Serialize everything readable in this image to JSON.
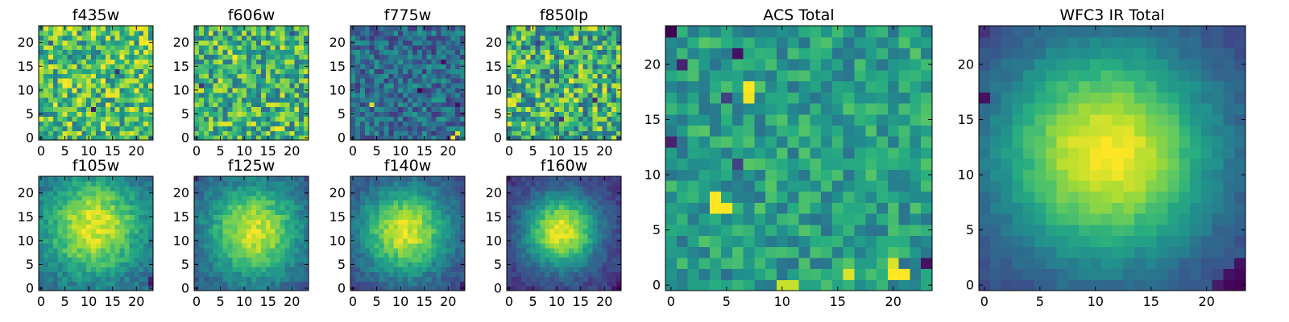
{
  "chart_data": {
    "type": "heatmap",
    "colormap": "viridis",
    "grid": false,
    "panels": [
      {
        "id": "f435w",
        "title": "f435w",
        "size": 24,
        "xticks": [
          0,
          5,
          10,
          15,
          20
        ],
        "yticks": [
          0,
          5,
          10,
          15,
          20
        ],
        "texture": "noise",
        "mean": 0.7,
        "amp": 0.3,
        "seed": 11,
        "dark_spots": [
          [
            11,
            6,
            0.08
          ],
          [
            16,
            14,
            0.15
          ],
          [
            2,
            20,
            0.3
          ]
        ],
        "bright_spots": [
          [
            13,
            12,
            1.0
          ]
        ]
      },
      {
        "id": "f606w",
        "title": "f606w",
        "size": 24,
        "xticks": [
          0,
          5,
          10,
          15,
          20
        ],
        "yticks": [
          0,
          5,
          10,
          15,
          20
        ],
        "texture": "noise",
        "mean": 0.66,
        "amp": 0.3,
        "seed": 23,
        "dark_spots": [
          [
            1,
            11,
            0.15
          ],
          [
            20,
            22,
            0.25
          ]
        ],
        "bright_spots": [
          [
            8,
            17,
            1.0
          ],
          [
            17,
            2,
            1.0
          ],
          [
            6,
            3,
            0.95
          ]
        ]
      },
      {
        "id": "f775w",
        "title": "f775w",
        "size": 24,
        "xticks": [
          0,
          5,
          10,
          15,
          20
        ],
        "yticks": [
          0,
          5,
          10,
          15,
          20
        ],
        "texture": "noise",
        "mean": 0.36,
        "amp": 0.2,
        "seed": 37,
        "dark_spots": [
          [
            14,
            10,
            0.0
          ],
          [
            19,
            16,
            0.05
          ],
          [
            22,
            7,
            0.05
          ]
        ],
        "bright_spots": [
          [
            4,
            7,
            0.95
          ],
          [
            21,
            0,
            1.0
          ],
          [
            22,
            1,
            0.95
          ]
        ]
      },
      {
        "id": "f850lp",
        "title": "f850lp",
        "size": 24,
        "xticks": [
          0,
          5,
          10,
          15,
          20
        ],
        "yticks": [
          0,
          5,
          10,
          15,
          20
        ],
        "texture": "noise",
        "mean": 0.64,
        "amp": 0.34,
        "seed": 53,
        "dark_spots": [
          [
            6,
            20,
            0.2
          ],
          [
            18,
            8,
            0.1
          ],
          [
            11,
            4,
            0.15
          ]
        ],
        "bright_spots": [
          [
            13,
            12,
            1.0
          ],
          [
            4,
            6,
            0.95
          ]
        ]
      },
      {
        "id": "f105w",
        "title": "f105w",
        "size": 24,
        "xticks": [
          0,
          5,
          10,
          15,
          20
        ],
        "yticks": [
          0,
          5,
          10,
          15,
          20
        ],
        "texture": "blob",
        "center": [
          11,
          13
        ],
        "sigma": 7.5,
        "base": 0.3,
        "peak": 0.96,
        "noise": 0.1,
        "seed": 71,
        "dark_spots": [
          [
            23,
            1,
            0.05
          ],
          [
            23,
            2,
            0.1
          ]
        ],
        "bright_spots": []
      },
      {
        "id": "f125w",
        "title": "f125w",
        "size": 24,
        "xticks": [
          0,
          5,
          10,
          15,
          20
        ],
        "yticks": [
          0,
          5,
          10,
          15,
          20
        ],
        "texture": "blob",
        "center": [
          12,
          12
        ],
        "sigma": 7.0,
        "base": 0.26,
        "peak": 0.94,
        "noise": 0.09,
        "seed": 83,
        "dark_spots": [
          [
            0,
            23,
            0.15
          ],
          [
            23,
            23,
            0.2
          ]
        ],
        "bright_spots": []
      },
      {
        "id": "f140w",
        "title": "f140w",
        "size": 24,
        "xticks": [
          0,
          5,
          10,
          15,
          20
        ],
        "yticks": [
          0,
          5,
          10,
          15,
          20
        ],
        "texture": "blob",
        "center": [
          11,
          12
        ],
        "sigma": 6.5,
        "base": 0.22,
        "peak": 0.95,
        "noise": 0.08,
        "seed": 97,
        "dark_spots": [
          [
            23,
            0,
            0.05
          ],
          [
            23,
            1,
            0.08
          ],
          [
            0,
            0,
            0.15
          ]
        ],
        "bright_spots": []
      },
      {
        "id": "f160w",
        "title": "f160w",
        "size": 24,
        "xticks": [
          0,
          5,
          10,
          15,
          20
        ],
        "yticks": [
          0,
          5,
          10,
          15,
          20
        ],
        "texture": "blob",
        "center": [
          11,
          12
        ],
        "sigma": 5.5,
        "base": 0.16,
        "peak": 0.97,
        "noise": 0.07,
        "seed": 109,
        "dark_spots": [
          [
            23,
            0,
            0.02
          ],
          [
            22,
            0,
            0.05
          ],
          [
            23,
            1,
            0.05
          ],
          [
            0,
            23,
            0.1
          ]
        ],
        "bright_spots": []
      },
      {
        "id": "acs-total",
        "title": "ACS Total",
        "size": 24,
        "xticks": [
          0,
          5,
          10,
          15,
          20
        ],
        "yticks": [
          0,
          5,
          10,
          15,
          20
        ],
        "texture": "noise",
        "mean": 0.56,
        "amp": 0.18,
        "seed": 131,
        "dark_spots": [
          [
            0,
            23,
            0.0
          ],
          [
            6,
            21,
            0.05
          ],
          [
            1,
            20,
            0.1
          ],
          [
            0,
            13,
            0.1
          ],
          [
            23,
            2,
            0.05
          ],
          [
            6,
            11,
            0.2
          ],
          [
            5,
            17,
            0.2
          ]
        ],
        "bright_spots": [
          [
            4,
            7,
            1.0
          ],
          [
            4,
            8,
            1.0
          ],
          [
            5,
            7,
            1.0
          ],
          [
            7,
            17,
            0.98
          ],
          [
            7,
            18,
            1.0
          ],
          [
            20,
            1,
            1.0
          ],
          [
            21,
            1,
            1.0
          ],
          [
            20,
            2,
            0.95
          ],
          [
            16,
            1,
            0.95
          ],
          [
            10,
            0,
            0.92
          ],
          [
            11,
            0,
            0.92
          ]
        ]
      },
      {
        "id": "wfc3-ir-total",
        "title": "WFC3 IR Total",
        "size": 24,
        "xticks": [
          0,
          5,
          10,
          15,
          20
        ],
        "yticks": [
          0,
          5,
          10,
          15,
          20
        ],
        "texture": "blob",
        "center": [
          11,
          12
        ],
        "sigma": 7.0,
        "base": 0.18,
        "peak": 1.0,
        "noise": 0.04,
        "seed": 151,
        "dark_spots": [
          [
            0,
            17,
            0.05
          ],
          [
            23,
            0,
            0.0
          ],
          [
            22,
            0,
            0.02
          ],
          [
            23,
            1,
            0.02
          ],
          [
            22,
            1,
            0.05
          ],
          [
            23,
            2,
            0.05
          ],
          [
            21,
            0,
            0.08
          ],
          [
            0,
            23,
            0.15
          ]
        ],
        "bright_spots": [
          [
            11,
            12,
            1.0
          ],
          [
            12,
            12,
            1.0
          ],
          [
            11,
            13,
            1.0
          ]
        ]
      }
    ]
  }
}
